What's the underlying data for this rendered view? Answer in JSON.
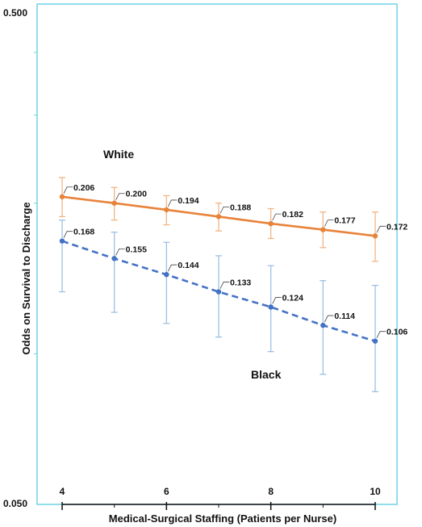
{
  "chart_data": {
    "type": "line",
    "title": "",
    "xlabel": "Medical-Surgical Staffing (Patients per Nurse)",
    "ylabel": "Odds on Survival to Discharge",
    "y_scale": "log",
    "xlim": [
      4,
      10
    ],
    "ylim": [
      0.05,
      0.5
    ],
    "x_ticks": [
      4,
      6,
      8,
      10
    ],
    "x_tick_labels": [
      "4",
      "6",
      "8",
      "10"
    ],
    "y_tick_labels": [
      "0.500",
      "0.050"
    ],
    "grid": false,
    "x": [
      4,
      5,
      6,
      7,
      8,
      9,
      10
    ],
    "series": [
      {
        "name": "White",
        "color": "#e8833a",
        "line_style": "solid",
        "values": [
          0.206,
          0.2,
          0.194,
          0.188,
          0.182,
          0.177,
          0.172
        ],
        "value_labels": [
          "0.206",
          "0.200",
          "0.194",
          "0.188",
          "0.182",
          "0.177",
          "0.172"
        ],
        "error_upper": [
          0.225,
          0.215,
          0.207,
          0.2,
          0.195,
          0.192,
          0.192
        ],
        "error_lower": [
          0.188,
          0.185,
          0.181,
          0.176,
          0.17,
          0.163,
          0.153
        ]
      },
      {
        "name": "Black",
        "color": "#4472c4",
        "line_style": "dashed",
        "values": [
          0.168,
          0.155,
          0.144,
          0.133,
          0.124,
          0.114,
          0.106
        ],
        "value_labels": [
          "0.168",
          "0.155",
          "0.144",
          "0.133",
          "0.124",
          "0.114",
          "0.106"
        ],
        "error_upper": [
          0.185,
          0.175,
          0.167,
          0.157,
          0.15,
          0.14,
          0.137
        ],
        "error_lower": [
          0.133,
          0.121,
          0.115,
          0.108,
          0.101,
          0.091,
          0.084
        ]
      }
    ]
  }
}
